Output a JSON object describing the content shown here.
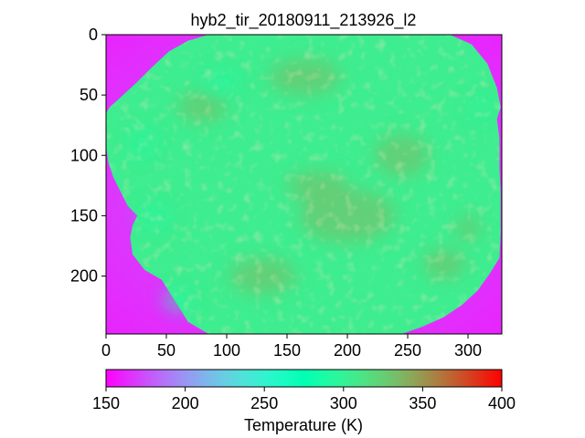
{
  "chart_data": {
    "type": "heatmap",
    "title": "hyb2_tir_20180911_213926_l2",
    "xlim": [
      0,
      328
    ],
    "ylim": [
      248,
      0
    ],
    "x_ticks": [
      0,
      50,
      100,
      150,
      200,
      250,
      300
    ],
    "y_ticks": [
      0,
      50,
      100,
      150,
      200
    ],
    "colorbar": {
      "label": "Temperature (K)",
      "range": [
        150,
        400
      ],
      "ticks": [
        150,
        200,
        250,
        300,
        350,
        400
      ],
      "colormap": "rainbow",
      "placement": "bottom"
    },
    "background_value": 180,
    "background_edge_value": 160,
    "surface_typical_value": 305,
    "surface_warm_value": 330,
    "surface_cool_value": 290,
    "outline": [
      [
        0,
        65
      ],
      [
        3,
        60
      ],
      [
        12,
        52
      ],
      [
        25,
        40
      ],
      [
        38,
        27
      ],
      [
        52,
        14
      ],
      [
        68,
        5
      ],
      [
        85,
        0
      ],
      [
        210,
        0
      ],
      [
        250,
        0
      ],
      [
        285,
        0
      ],
      [
        303,
        8
      ],
      [
        316,
        24
      ],
      [
        324,
        44
      ],
      [
        327,
        60
      ],
      [
        324,
        70
      ],
      [
        326,
        86
      ],
      [
        326,
        110
      ],
      [
        327,
        130
      ],
      [
        327,
        165
      ],
      [
        326,
        185
      ],
      [
        318,
        198
      ],
      [
        308,
        212
      ],
      [
        295,
        224
      ],
      [
        280,
        234
      ],
      [
        262,
        242
      ],
      [
        245,
        248
      ],
      [
        240,
        248
      ],
      [
        118,
        248
      ],
      [
        85,
        248
      ],
      [
        68,
        238
      ],
      [
        58,
        222
      ],
      [
        46,
        203
      ],
      [
        32,
        195
      ],
      [
        22,
        182
      ],
      [
        20,
        168
      ],
      [
        22,
        158
      ],
      [
        26,
        150
      ],
      [
        18,
        142
      ],
      [
        12,
        130
      ],
      [
        6,
        118
      ],
      [
        2,
        106
      ],
      [
        0,
        92
      ]
    ],
    "warm_regions": [
      [
        165,
        35,
        60,
        30
      ],
      [
        200,
        150,
        80,
        45
      ],
      [
        245,
        100,
        45,
        35
      ],
      [
        130,
        200,
        55,
        30
      ],
      [
        80,
        60,
        40,
        25
      ],
      [
        280,
        190,
        35,
        25
      ],
      [
        175,
        125,
        50,
        25
      ],
      [
        300,
        160,
        20,
        20
      ]
    ],
    "cool_regions": [
      [
        40,
        150,
        25,
        20
      ],
      [
        60,
        220,
        25,
        18
      ],
      [
        95,
        40,
        30,
        20
      ],
      [
        30,
        90,
        20,
        25
      ],
      [
        310,
        60,
        15,
        15
      ]
    ]
  }
}
